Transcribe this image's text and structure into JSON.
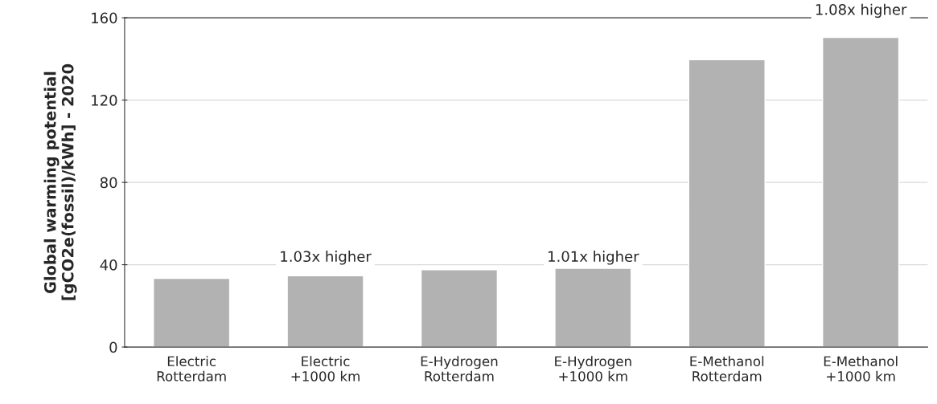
{
  "chart_data": {
    "type": "bar",
    "ylabel": "Global warming potential\n[gCO2e(fossil)/kWh] - 2020",
    "categories": [
      "Electric\nRotterdam",
      "Electric\n+1000 km",
      "E-Hydrogen\nRotterdam",
      "E-Hydrogen\n+1000 km",
      "E-Methanol\nRotterdam",
      "E-Methanol\n+1000 km"
    ],
    "values": [
      33.4,
      34.6,
      37.6,
      38.3,
      139.6,
      150.5
    ],
    "color": "#b2b2b2",
    "ylim": [
      0,
      160
    ],
    "yticks": [
      0,
      40,
      80,
      120,
      160
    ],
    "grid": "y",
    "legend": false,
    "annotations": [
      "1.03x higher",
      "1.01x higher",
      "1.08x higher"
    ]
  }
}
